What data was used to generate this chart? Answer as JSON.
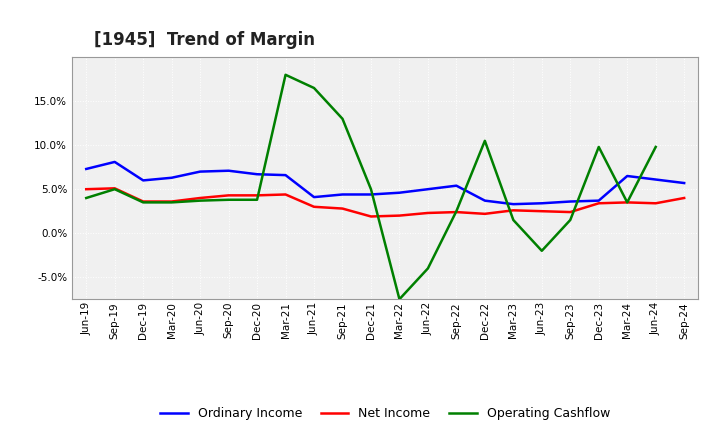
{
  "title": "[1945]  Trend of Margin",
  "labels": [
    "Jun-19",
    "Sep-19",
    "Dec-19",
    "Mar-20",
    "Jun-20",
    "Sep-20",
    "Dec-20",
    "Mar-21",
    "Jun-21",
    "Sep-21",
    "Dec-21",
    "Mar-22",
    "Jun-22",
    "Sep-22",
    "Dec-22",
    "Mar-23",
    "Jun-23",
    "Sep-23",
    "Dec-23",
    "Mar-24",
    "Jun-24",
    "Sep-24"
  ],
  "ordinary_income": [
    7.3,
    8.1,
    6.0,
    6.3,
    7.0,
    7.1,
    6.7,
    6.6,
    4.1,
    4.4,
    4.4,
    4.6,
    5.0,
    5.4,
    3.7,
    3.3,
    3.4,
    3.6,
    3.7,
    6.5,
    6.1,
    5.7
  ],
  "net_income": [
    5.0,
    5.1,
    3.6,
    3.6,
    4.0,
    4.3,
    4.3,
    4.4,
    3.0,
    2.8,
    1.9,
    2.0,
    2.3,
    2.4,
    2.2,
    2.6,
    2.5,
    2.4,
    3.4,
    3.5,
    3.4,
    4.0
  ],
  "operating_cashflow": [
    4.0,
    5.0,
    3.5,
    3.5,
    3.7,
    3.8,
    3.8,
    18.0,
    16.5,
    13.0,
    5.0,
    -7.5,
    -4.0,
    2.5,
    10.5,
    1.5,
    -2.0,
    1.5,
    9.8,
    3.5,
    9.8,
    null
  ],
  "ordinary_income_color": "#0000ff",
  "net_income_color": "#ff0000",
  "operating_cashflow_color": "#008000",
  "ylim": [
    -7.5,
    20.0
  ],
  "yticks": [
    -5.0,
    0.0,
    5.0,
    10.0,
    15.0
  ],
  "background_color": "#ffffff",
  "plot_bg_color": "#f0f0f0",
  "grid_color": "#ffffff",
  "legend_labels": [
    "Ordinary Income",
    "Net Income",
    "Operating Cashflow"
  ],
  "title_fontsize": 12,
  "tick_fontsize": 7.5,
  "legend_fontsize": 9,
  "linewidth": 1.8
}
